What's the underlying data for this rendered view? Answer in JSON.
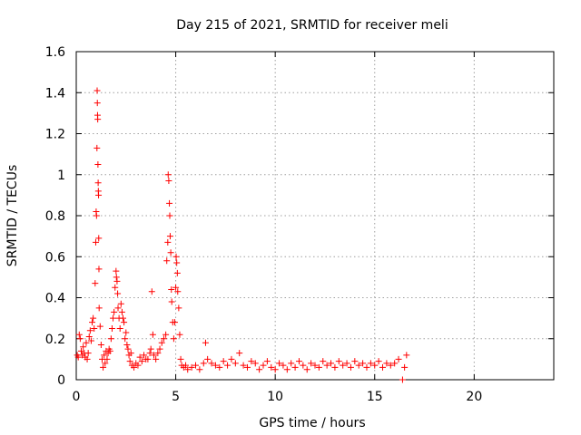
{
  "chart_data": {
    "type": "scatter",
    "title": "Day 215 of 2021, SRMTID for receiver meli",
    "xlabel": "GPS time / hours",
    "ylabel": "SRMTID / TECUs",
    "xlim": [
      0,
      24
    ],
    "ylim": [
      0,
      1.6
    ],
    "xticks": [
      0,
      5,
      10,
      15,
      20
    ],
    "xtick_labels": [
      "0",
      "5",
      "10",
      "15",
      "20"
    ],
    "yticks": [
      0,
      0.2,
      0.4,
      0.6,
      0.8,
      1.0,
      1.2,
      1.4,
      1.6
    ],
    "ytick_labels": [
      "0",
      "0.2",
      "0.4",
      "0.6",
      "0.8",
      "1",
      "1.2",
      "1.4",
      "1.6"
    ],
    "grid": true,
    "marker_color": "#ff0000",
    "series": [
      {
        "name": "SRMTID",
        "marker": "+",
        "points": [
          [
            0.05,
            0.12
          ],
          [
            0.1,
            0.11
          ],
          [
            0.15,
            0.22
          ],
          [
            0.2,
            0.2
          ],
          [
            0.25,
            0.14
          ],
          [
            0.3,
            0.12
          ],
          [
            0.35,
            0.16
          ],
          [
            0.4,
            0.13
          ],
          [
            0.45,
            0.11
          ],
          [
            0.5,
            0.18
          ],
          [
            0.55,
            0.1
          ],
          [
            0.6,
            0.13
          ],
          [
            0.65,
            0.21
          ],
          [
            0.7,
            0.24
          ],
          [
            0.75,
            0.19
          ],
          [
            0.8,
            0.28
          ],
          [
            0.85,
            0.3
          ],
          [
            0.9,
            0.25
          ],
          [
            0.95,
            0.47
          ],
          [
            0.98,
            0.67
          ],
          [
            1.0,
            0.82
          ],
          [
            1.02,
            0.8
          ],
          [
            1.04,
            1.13
          ],
          [
            1.05,
            1.41
          ],
          [
            1.06,
            1.35
          ],
          [
            1.07,
            1.29
          ],
          [
            1.08,
            1.27
          ],
          [
            1.09,
            1.05
          ],
          [
            1.1,
            0.96
          ],
          [
            1.11,
            0.92
          ],
          [
            1.12,
            0.9
          ],
          [
            1.13,
            0.69
          ],
          [
            1.14,
            0.54
          ],
          [
            1.15,
            0.35
          ],
          [
            1.2,
            0.26
          ],
          [
            1.25,
            0.17
          ],
          [
            1.3,
            0.1
          ],
          [
            1.35,
            0.06
          ],
          [
            1.4,
            0.12
          ],
          [
            1.45,
            0.08
          ],
          [
            1.5,
            0.14
          ],
          [
            1.55,
            0.1
          ],
          [
            1.6,
            0.13
          ],
          [
            1.65,
            0.15
          ],
          [
            1.7,
            0.14
          ],
          [
            1.75,
            0.2
          ],
          [
            1.8,
            0.25
          ],
          [
            1.85,
            0.3
          ],
          [
            1.9,
            0.33
          ],
          [
            1.95,
            0.45
          ],
          [
            2.0,
            0.53
          ],
          [
            2.02,
            0.5
          ],
          [
            2.05,
            0.48
          ],
          [
            2.08,
            0.42
          ],
          [
            2.1,
            0.35
          ],
          [
            2.15,
            0.3
          ],
          [
            2.2,
            0.25
          ],
          [
            2.25,
            0.37
          ],
          [
            2.3,
            0.33
          ],
          [
            2.35,
            0.3
          ],
          [
            2.4,
            0.28
          ],
          [
            2.45,
            0.2
          ],
          [
            2.5,
            0.23
          ],
          [
            2.55,
            0.17
          ],
          [
            2.6,
            0.15
          ],
          [
            2.65,
            0.12
          ],
          [
            2.7,
            0.09
          ],
          [
            2.75,
            0.13
          ],
          [
            2.8,
            0.07
          ],
          [
            2.9,
            0.06
          ],
          [
            3.0,
            0.08
          ],
          [
            3.1,
            0.07
          ],
          [
            3.2,
            0.11
          ],
          [
            3.3,
            0.09
          ],
          [
            3.4,
            0.12
          ],
          [
            3.5,
            0.1
          ],
          [
            3.6,
            0.1
          ],
          [
            3.7,
            0.13
          ],
          [
            3.75,
            0.15
          ],
          [
            3.8,
            0.43
          ],
          [
            3.85,
            0.22
          ],
          [
            3.9,
            0.12
          ],
          [
            4.0,
            0.1
          ],
          [
            4.1,
            0.13
          ],
          [
            4.2,
            0.15
          ],
          [
            4.3,
            0.18
          ],
          [
            4.4,
            0.2
          ],
          [
            4.5,
            0.22
          ],
          [
            4.55,
            0.58
          ],
          [
            4.6,
            0.67
          ],
          [
            4.62,
            1.0
          ],
          [
            4.65,
            0.97
          ],
          [
            4.68,
            0.86
          ],
          [
            4.7,
            0.8
          ],
          [
            4.72,
            0.7
          ],
          [
            4.75,
            0.62
          ],
          [
            4.78,
            0.44
          ],
          [
            4.8,
            0.38
          ],
          [
            4.85,
            0.28
          ],
          [
            4.9,
            0.2
          ],
          [
            4.95,
            0.28
          ],
          [
            5.0,
            0.45
          ],
          [
            5.02,
            0.6
          ],
          [
            5.05,
            0.57
          ],
          [
            5.08,
            0.52
          ],
          [
            5.1,
            0.43
          ],
          [
            5.15,
            0.35
          ],
          [
            5.2,
            0.22
          ],
          [
            5.25,
            0.1
          ],
          [
            5.3,
            0.07
          ],
          [
            5.4,
            0.06
          ],
          [
            5.5,
            0.07
          ],
          [
            5.6,
            0.05
          ],
          [
            5.8,
            0.06
          ],
          [
            6.0,
            0.07
          ],
          [
            6.2,
            0.05
          ],
          [
            6.4,
            0.08
          ],
          [
            6.5,
            0.18
          ],
          [
            6.6,
            0.1
          ],
          [
            6.8,
            0.08
          ],
          [
            7.0,
            0.07
          ],
          [
            7.2,
            0.06
          ],
          [
            7.4,
            0.09
          ],
          [
            7.6,
            0.07
          ],
          [
            7.8,
            0.1
          ],
          [
            8.0,
            0.08
          ],
          [
            8.2,
            0.13
          ],
          [
            8.4,
            0.07
          ],
          [
            8.6,
            0.06
          ],
          [
            8.8,
            0.09
          ],
          [
            9.0,
            0.08
          ],
          [
            9.2,
            0.05
          ],
          [
            9.4,
            0.07
          ],
          [
            9.6,
            0.09
          ],
          [
            9.8,
            0.06
          ],
          [
            10.0,
            0.05
          ],
          [
            10.2,
            0.08
          ],
          [
            10.4,
            0.07
          ],
          [
            10.6,
            0.05
          ],
          [
            10.8,
            0.08
          ],
          [
            11.0,
            0.06
          ],
          [
            11.2,
            0.09
          ],
          [
            11.4,
            0.07
          ],
          [
            11.6,
            0.05
          ],
          [
            11.8,
            0.08
          ],
          [
            12.0,
            0.07
          ],
          [
            12.2,
            0.06
          ],
          [
            12.4,
            0.09
          ],
          [
            12.6,
            0.07
          ],
          [
            12.8,
            0.08
          ],
          [
            13.0,
            0.06
          ],
          [
            13.2,
            0.09
          ],
          [
            13.4,
            0.07
          ],
          [
            13.6,
            0.08
          ],
          [
            13.8,
            0.06
          ],
          [
            14.0,
            0.09
          ],
          [
            14.2,
            0.07
          ],
          [
            14.4,
            0.08
          ],
          [
            14.6,
            0.06
          ],
          [
            14.8,
            0.08
          ],
          [
            15.0,
            0.07
          ],
          [
            15.2,
            0.09
          ],
          [
            15.4,
            0.06
          ],
          [
            15.6,
            0.08
          ],
          [
            15.8,
            0.07
          ],
          [
            16.0,
            0.08
          ],
          [
            16.2,
            0.1
          ],
          [
            16.4,
            0.0
          ],
          [
            16.5,
            0.06
          ],
          [
            16.6,
            0.12
          ]
        ]
      }
    ]
  }
}
